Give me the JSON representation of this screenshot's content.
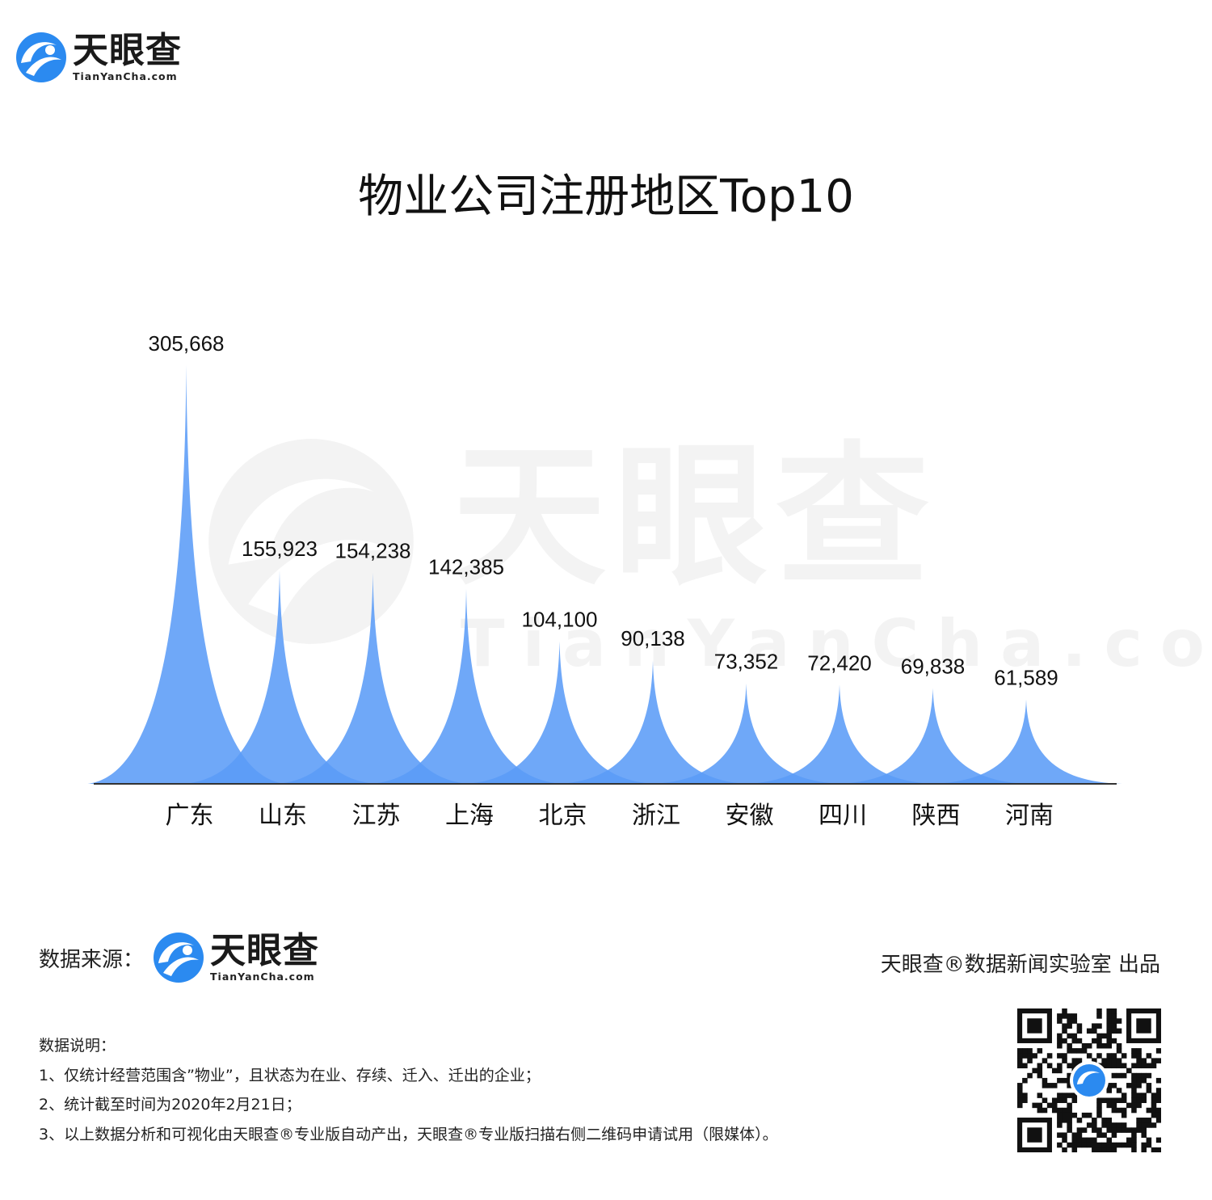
{
  "brand": {
    "name_cn": "天眼查",
    "name_en": "TianYanCha.com",
    "color": "#2b8af0"
  },
  "title": "物业公司注册地区Top10",
  "chart_data": {
    "type": "area",
    "title": "物业公司注册地区Top10",
    "categories": [
      "广东",
      "山东",
      "江苏",
      "上海",
      "北京",
      "浙江",
      "安徽",
      "四川",
      "陕西",
      "河南"
    ],
    "values": [
      305668,
      155923,
      154238,
      142385,
      104100,
      90138,
      73352,
      72420,
      69838,
      61589
    ],
    "value_labels": [
      "305,668",
      "155,923",
      "154,238",
      "142,385",
      "104,100",
      "90,138",
      "73,352",
      "72,420",
      "69,838",
      "61,589"
    ],
    "ylim": [
      0,
      305668
    ],
    "grid": false,
    "legend": "none",
    "fill_color": "#5b9cf7"
  },
  "footer": {
    "source_label": "数据来源：",
    "publisher": "天眼查®数据新闻实验室 出品",
    "notes_title": "数据说明：",
    "notes": [
      "1、仅统计经营范围含”物业”，且状态为在业、存续、迁入、迁出的企业；",
      "2、统计截至时间为2020年2月21日；",
      "3、以上数据分析和可视化由天眼查®专业版自动产出，天眼查®专业版扫描右侧二维码申请试用（限媒体）。"
    ]
  }
}
